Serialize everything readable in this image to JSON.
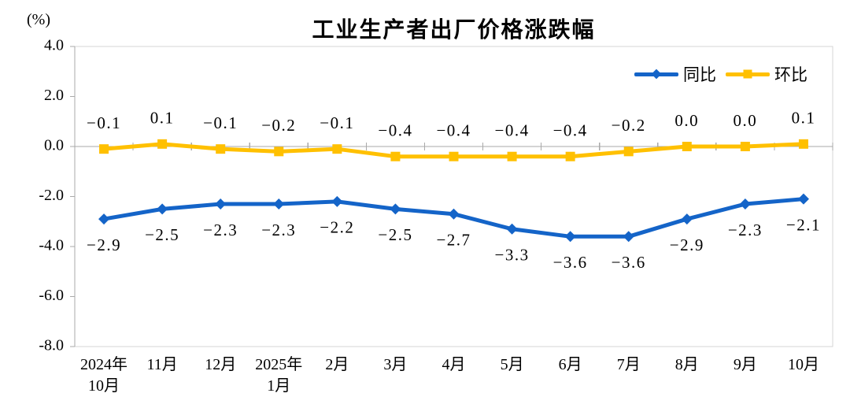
{
  "unit_label": "(%)",
  "title": "工业生产者出厂价格涨跌幅",
  "legend": [
    {
      "label": "同比",
      "color": "#1464C8",
      "marker": "diamond"
    },
    {
      "label": "环比",
      "color": "#FFC000",
      "marker": "square"
    }
  ],
  "colors": {
    "series_yoy": "#1464C8",
    "series_mom": "#FFC000",
    "axis_line": "#A9A9A9",
    "plot_frame": "#D5D5D5",
    "text": "#000000"
  },
  "chart_data": {
    "type": "line",
    "title": "工业生产者出厂价格涨跌幅",
    "ylabel": "(%)",
    "categories": [
      "2024年\n10月",
      "11月",
      "12月",
      "2025年\n1月",
      "2月",
      "3月",
      "4月",
      "5月",
      "6月",
      "7月",
      "8月",
      "9月",
      "10月"
    ],
    "series": [
      {
        "name": "同比",
        "color": "#1464C8",
        "marker": "diamond",
        "label_position": "below",
        "values": [
          -2.9,
          -2.5,
          -2.3,
          -2.3,
          -2.2,
          -2.5,
          -2.7,
          -3.3,
          -3.6,
          -3.6,
          -2.9,
          -2.3,
          -2.1
        ]
      },
      {
        "name": "环比",
        "color": "#FFC000",
        "marker": "square",
        "label_position": "above",
        "values": [
          -0.1,
          0.1,
          -0.1,
          -0.2,
          -0.1,
          -0.4,
          -0.4,
          -0.4,
          -0.4,
          -0.2,
          0.0,
          0.0,
          0.1
        ]
      }
    ],
    "ylim": [
      -8.0,
      4.0
    ],
    "ytick_step": 2.0,
    "yticks": [
      "4.0",
      "2.0",
      "0.0",
      "-2.0",
      "-4.0",
      "-6.0",
      "-8.0"
    ],
    "grid": false,
    "legend_position": "top-right"
  }
}
